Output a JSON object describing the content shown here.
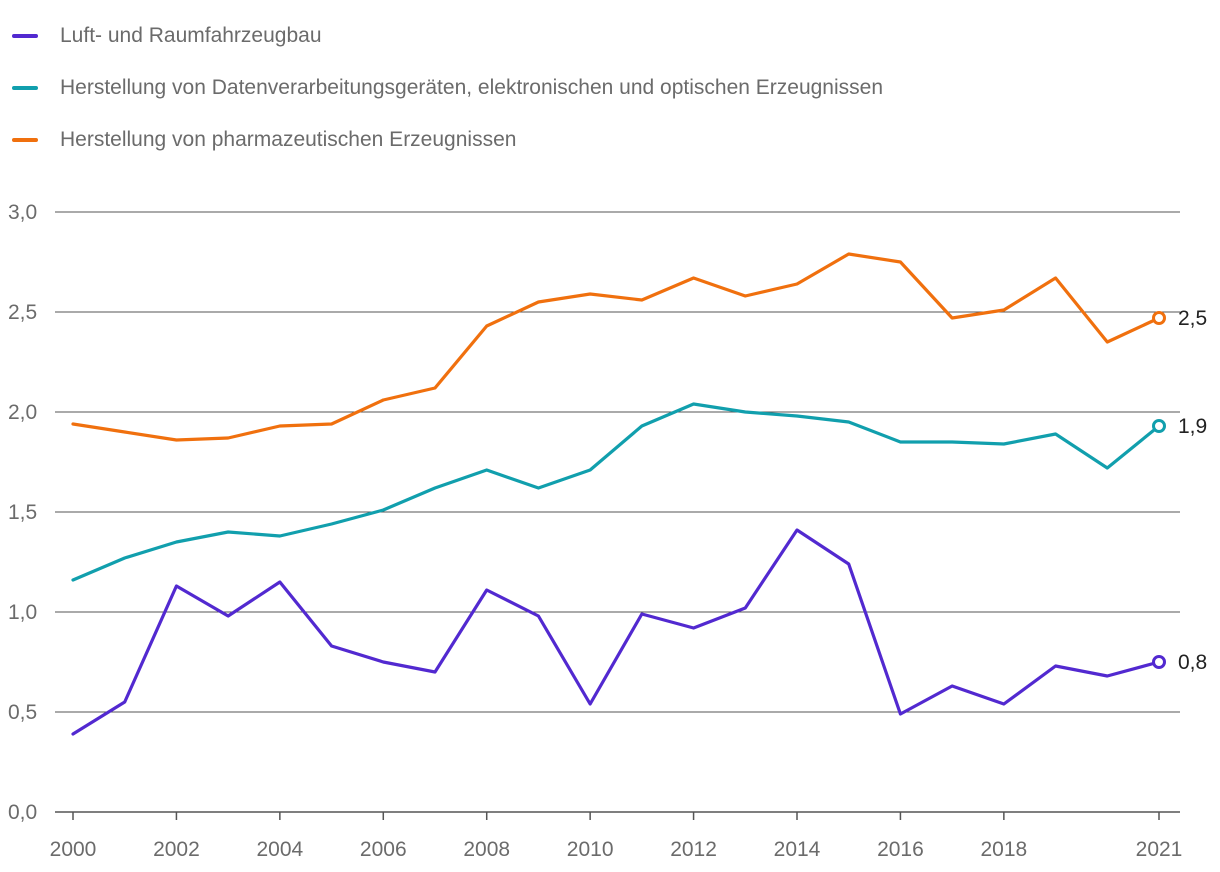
{
  "chart_data": {
    "type": "line",
    "title": "",
    "xlabel": "",
    "ylabel": "",
    "ylim": [
      0,
      3
    ],
    "xlim": [
      2000,
      2021
    ],
    "y_ticks": [
      "0,0",
      "0,5",
      "1,0",
      "1,5",
      "2,0",
      "2,5",
      "3,0"
    ],
    "y_tick_values": [
      0,
      0.5,
      1,
      1.5,
      2,
      2.5,
      3
    ],
    "x_ticks": [
      "2000",
      "2002",
      "2004",
      "2006",
      "2008",
      "2010",
      "2012",
      "2014",
      "2016",
      "2018",
      "2021"
    ],
    "x_tick_values": [
      2000,
      2002,
      2004,
      2006,
      2008,
      2010,
      2012,
      2014,
      2016,
      2018,
      2021
    ],
    "grid": true,
    "legend_position": "top-left",
    "x": [
      2000,
      2001,
      2002,
      2003,
      2004,
      2005,
      2006,
      2007,
      2008,
      2009,
      2010,
      2011,
      2012,
      2013,
      2014,
      2015,
      2016,
      2017,
      2018,
      2019,
      2020,
      2021
    ],
    "series": [
      {
        "name": "Luft- und Raumfahrzeugbau",
        "color": "#5229d0",
        "values": [
          0.39,
          0.55,
          1.13,
          0.98,
          1.15,
          0.83,
          0.75,
          0.7,
          1.11,
          0.98,
          0.54,
          0.99,
          0.92,
          1.02,
          1.41,
          1.24,
          0.49,
          0.63,
          0.54,
          0.73,
          0.68,
          0.75
        ],
        "end_label": "0,8"
      },
      {
        "name": "Herstellung von Datenverarbeitungsgeräten, elektronischen und optischen Erzeugnissen",
        "color": "#119fad",
        "values": [
          1.16,
          1.27,
          1.35,
          1.4,
          1.38,
          1.44,
          1.51,
          1.62,
          1.71,
          1.62,
          1.71,
          1.93,
          2.04,
          2.0,
          1.98,
          1.95,
          1.85,
          1.85,
          1.84,
          1.89,
          1.72,
          1.93
        ],
        "end_label": "1,9"
      },
      {
        "name": "Herstellung von pharmazeutischen Erzeugnissen",
        "color": "#f0700e",
        "values": [
          1.94,
          1.9,
          1.86,
          1.87,
          1.93,
          1.94,
          2.06,
          2.12,
          2.43,
          2.55,
          2.59,
          2.56,
          2.67,
          2.58,
          2.64,
          2.79,
          2.75,
          2.47,
          2.51,
          2.67,
          2.35,
          2.47
        ],
        "end_label": "2,5"
      }
    ]
  }
}
